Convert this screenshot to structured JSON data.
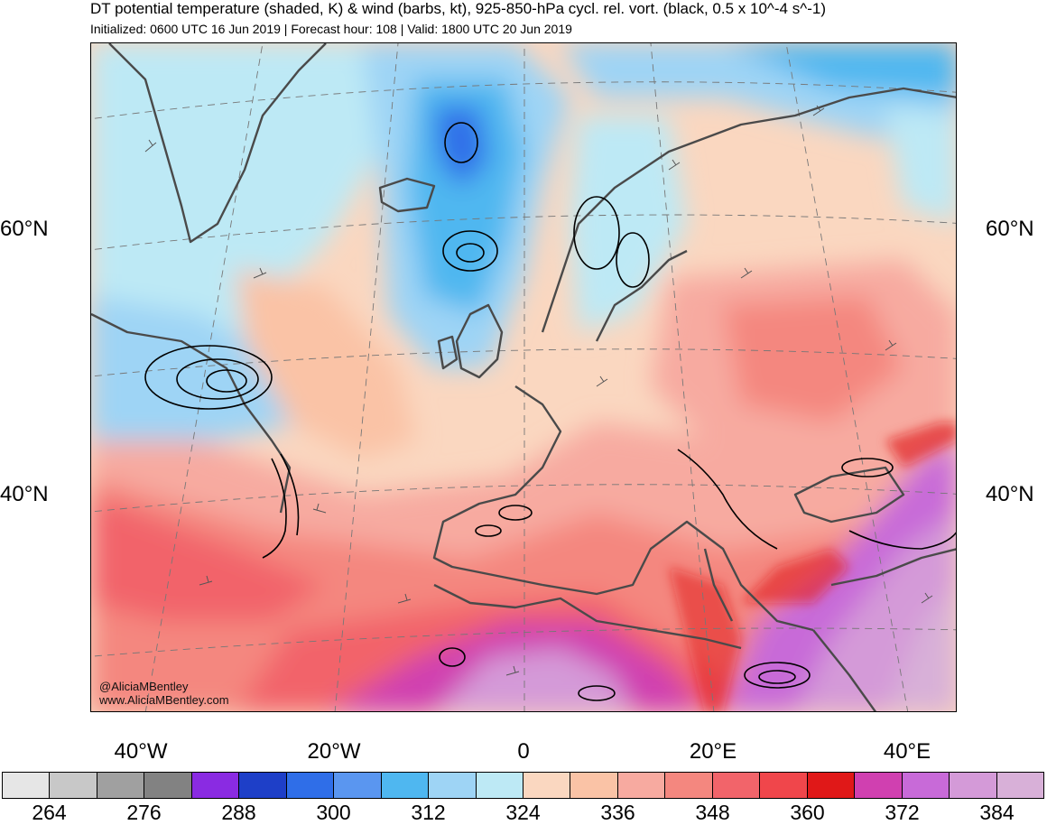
{
  "header": {
    "title": "DT potential temperature (shaded, K) & wind (barbs, kt), 925-850-hPa cycl. rel. vort. (black, 0.5 x 10^-4 s^-1)",
    "subtitle": "Initialized: 0600 UTC 16 Jun 2019 | Forecast hour: 108 | Valid: 1800 UTC 20 Jun 2019"
  },
  "map": {
    "lat_labels": [
      "60°N",
      "40°N"
    ],
    "lon_labels": [
      "40°W",
      "20°W",
      "0",
      "20°E",
      "40°E"
    ],
    "credit_handle": "@AliciaMBentley",
    "credit_url": "www.AliciaMBentley.com",
    "layers": [
      "potential-temperature-shading",
      "wind-barbs",
      "vorticity-contours",
      "coastlines",
      "graticule"
    ]
  },
  "colorbar": {
    "colors": [
      "#e6e6e6",
      "#c8c8c8",
      "#a0a0a0",
      "#828282",
      "#8a2be2",
      "#1e3fc8",
      "#2f6ee8",
      "#5a96f0",
      "#4fb7f0",
      "#9ed4f5",
      "#bde9f5",
      "#fad7c0",
      "#fac3a6",
      "#f7aaa0",
      "#f4877f",
      "#f2646a",
      "#f0464b",
      "#e01818",
      "#d040b0",
      "#c86ad8",
      "#d49ad8",
      "#d8b0d8"
    ],
    "tick_labels": [
      "264",
      "276",
      "288",
      "300",
      "312",
      "324",
      "336",
      "348",
      "360",
      "372",
      "384"
    ]
  }
}
